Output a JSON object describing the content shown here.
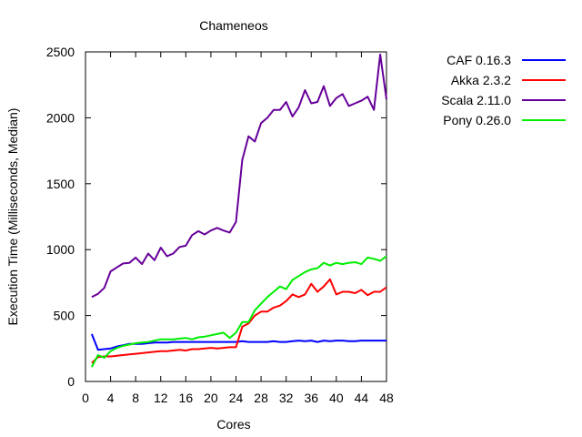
{
  "chart_data": {
    "type": "line",
    "title": "Chameneos",
    "xlabel": "Cores",
    "ylabel": "Execution Time (Milliseconds, Median)",
    "xlim": [
      0,
      48
    ],
    "ylim": [
      0,
      2500
    ],
    "xticks": [
      0,
      4,
      8,
      12,
      16,
      20,
      24,
      28,
      32,
      36,
      40,
      44,
      48
    ],
    "yticks": [
      0,
      500,
      1000,
      1500,
      2000,
      2500
    ],
    "grid": false,
    "legend_position": "top-right, outside plot",
    "x": [
      1,
      2,
      3,
      4,
      5,
      6,
      7,
      8,
      9,
      10,
      11,
      12,
      13,
      14,
      15,
      16,
      17,
      18,
      19,
      20,
      21,
      22,
      23,
      24,
      25,
      26,
      27,
      28,
      29,
      30,
      31,
      32,
      33,
      34,
      35,
      36,
      37,
      38,
      39,
      40,
      41,
      42,
      43,
      44,
      45,
      46,
      47,
      48
    ],
    "series": [
      {
        "name": "CAF 0.16.3",
        "color": "#0000ff",
        "values": [
          360,
          240,
          245,
          250,
          265,
          275,
          285,
          285,
          285,
          290,
          295,
          295,
          295,
          300,
          300,
          300,
          300,
          300,
          300,
          300,
          300,
          300,
          300,
          300,
          305,
          300,
          300,
          300,
          300,
          305,
          300,
          300,
          305,
          310,
          305,
          310,
          300,
          310,
          305,
          310,
          310,
          305,
          305,
          310,
          310,
          310,
          310,
          310
        ]
      },
      {
        "name": "Akka 2.3.2",
        "color": "#ff0000",
        "values": [
          140,
          185,
          190,
          190,
          195,
          200,
          205,
          210,
          215,
          220,
          225,
          230,
          230,
          235,
          240,
          235,
          245,
          245,
          250,
          255,
          250,
          255,
          260,
          260,
          415,
          440,
          500,
          530,
          530,
          560,
          575,
          610,
          660,
          640,
          660,
          740,
          680,
          720,
          775,
          660,
          680,
          680,
          670,
          695,
          655,
          680,
          680,
          715
        ]
      },
      {
        "name": "Scala 2.11.0",
        "color": "#660099",
        "values": [
          640,
          665,
          710,
          835,
          865,
          895,
          900,
          940,
          890,
          970,
          920,
          1015,
          950,
          970,
          1020,
          1030,
          1110,
          1140,
          1115,
          1145,
          1165,
          1145,
          1130,
          1210,
          1680,
          1860,
          1820,
          1960,
          2000,
          2060,
          2060,
          2120,
          2010,
          2080,
          2210,
          2110,
          2120,
          2240,
          2090,
          2150,
          2180,
          2090,
          2110,
          2130,
          2160,
          2060,
          2480,
          2140
        ]
      },
      {
        "name": "Pony 0.26.0",
        "color": "#00ee00",
        "values": [
          110,
          200,
          180,
          230,
          255,
          270,
          280,
          290,
          295,
          300,
          310,
          320,
          320,
          320,
          325,
          330,
          320,
          335,
          340,
          350,
          360,
          370,
          330,
          370,
          450,
          450,
          540,
          590,
          640,
          680,
          720,
          700,
          770,
          800,
          830,
          850,
          860,
          900,
          880,
          900,
          890,
          900,
          905,
          890,
          940,
          930,
          915,
          950
        ]
      }
    ]
  }
}
